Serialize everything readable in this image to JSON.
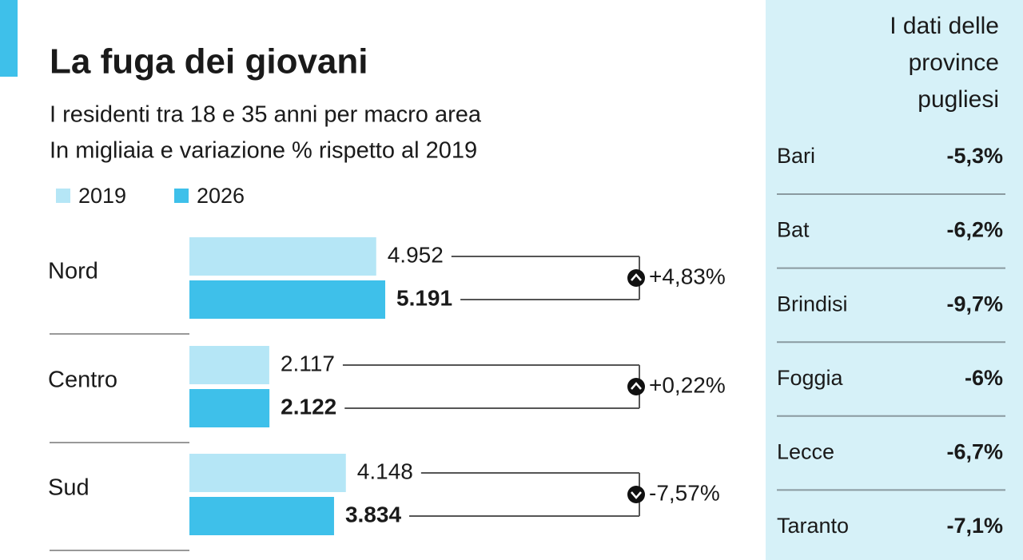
{
  "chart_data": {
    "type": "bar",
    "orientation": "horizontal",
    "title": "La fuga dei giovani",
    "subtitle": [
      "I residenti tra 18 e 35 anni per macro area",
      "In migliaia e variazione % rispetto al 2019"
    ],
    "categories": [
      "Nord",
      "Centro",
      "Sud"
    ],
    "series": [
      {
        "name": "2019",
        "color": "#b5e6f6",
        "values": [
          4952,
          2117,
          4148
        ],
        "value_labels": [
          "4.952",
          "2.117",
          "4.148"
        ]
      },
      {
        "name": "2026",
        "color": "#3ec0ea",
        "values": [
          5191,
          2122,
          3834
        ],
        "value_labels": [
          "5.191",
          "2.122",
          "3.834"
        ]
      }
    ],
    "changes": [
      {
        "value": 4.83,
        "label": "+4,83%"
      },
      {
        "value": 0.22,
        "label": "+0,22%"
      },
      {
        "value": -7.57,
        "label": "-7,57%"
      }
    ]
  },
  "side_table": {
    "title": [
      "I dati delle",
      "province",
      "pugliesi"
    ],
    "rows": [
      [
        "Bari",
        "-5,3%"
      ],
      [
        "Bat",
        "-6,2%"
      ],
      [
        "Brindisi",
        "-9,7%"
      ],
      [
        "Foggia",
        "-6%"
      ],
      [
        "Lecce",
        "-6,7%"
      ],
      [
        "Taranto",
        "-7,1%"
      ]
    ]
  }
}
